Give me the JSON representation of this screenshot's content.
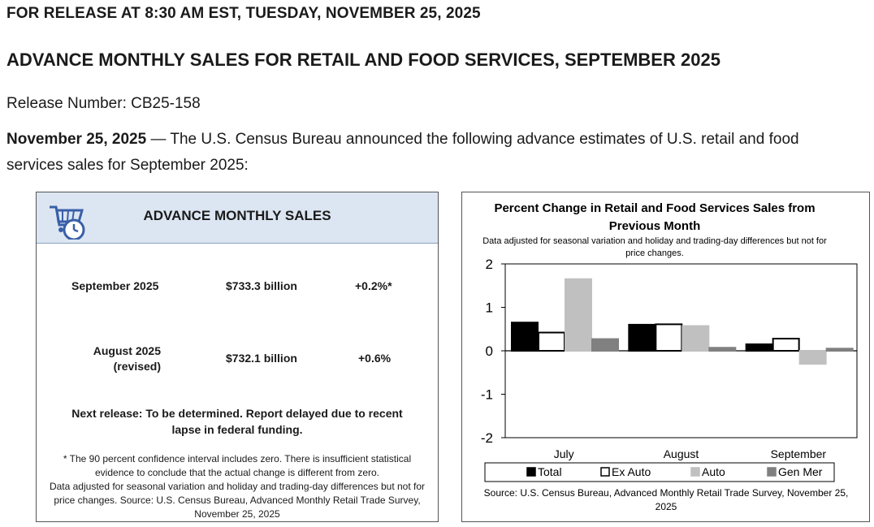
{
  "release_line": "FOR RELEASE AT 8:30 AM EST, TUESDAY, NOVEMBER 25, 2025",
  "headline": "ADVANCE MONTHLY SALES FOR RETAIL AND FOOD SERVICES, SEPTEMBER 2025",
  "release_number": "Release Number: CB25-158",
  "intro": {
    "date": "November 25, 2025",
    "text": " — The U.S. Census Bureau announced the following advance estimates of U.S. retail and food services sales for September 2025:"
  },
  "sales_box": {
    "title": "ADVANCE MONTHLY SALES",
    "icon": "shopping-cart-clock-icon",
    "rows": [
      {
        "period": "September 2025",
        "sub": "",
        "amount": "$733.3 billion",
        "change": "+0.2%*"
      },
      {
        "period": "August 2025",
        "sub": "(revised)",
        "amount": "$732.1 billion",
        "change": "+0.6%"
      }
    ],
    "next_release": "Next release: To be determined. Report delayed due to recent lapse in federal funding.",
    "footnote_1": "* The 90 percent confidence interval includes zero. There is insufficient statistical evidence to conclude that the actual change is different from zero.",
    "footnote_2": "Data adjusted for seasonal variation and holiday and trading-day differences but not for price changes. Source: U.S. Census Bureau, Advanced Monthly Retail Trade Survey, November 25, 2025"
  },
  "chart_data": {
    "type": "bar",
    "title": "Percent Change in Retail and Food Services Sales from Previous Month",
    "subtitle": "Data adjusted for seasonal variation and holiday and trading-day differences but not for price changes.",
    "categories": [
      "July",
      "August",
      "September"
    ],
    "series": [
      {
        "name": "Total",
        "color": "#000000",
        "border": "#000000",
        "values": [
          0.65,
          0.6,
          0.15
        ]
      },
      {
        "name": "Ex Auto",
        "color": "#ffffff",
        "border": "#000000",
        "values": [
          0.42,
          0.61,
          0.28
        ]
      },
      {
        "name": "Auto",
        "color": "#c0c0c0",
        "border": "#c0c0c0",
        "values": [
          1.65,
          0.57,
          -0.3
        ]
      },
      {
        "name": "Gen Mer",
        "color": "#808080",
        "border": "#808080",
        "values": [
          0.27,
          0.07,
          0.05
        ]
      }
    ],
    "ylim": [
      -2,
      2
    ],
    "yticks": [
      "2",
      "1",
      "0",
      "-1",
      "-2"
    ],
    "source": "Source: U.S. Census Bureau, Advanced Monthly Retail Trade Survey, November 25, 2025",
    "legend_position": "bottom"
  }
}
